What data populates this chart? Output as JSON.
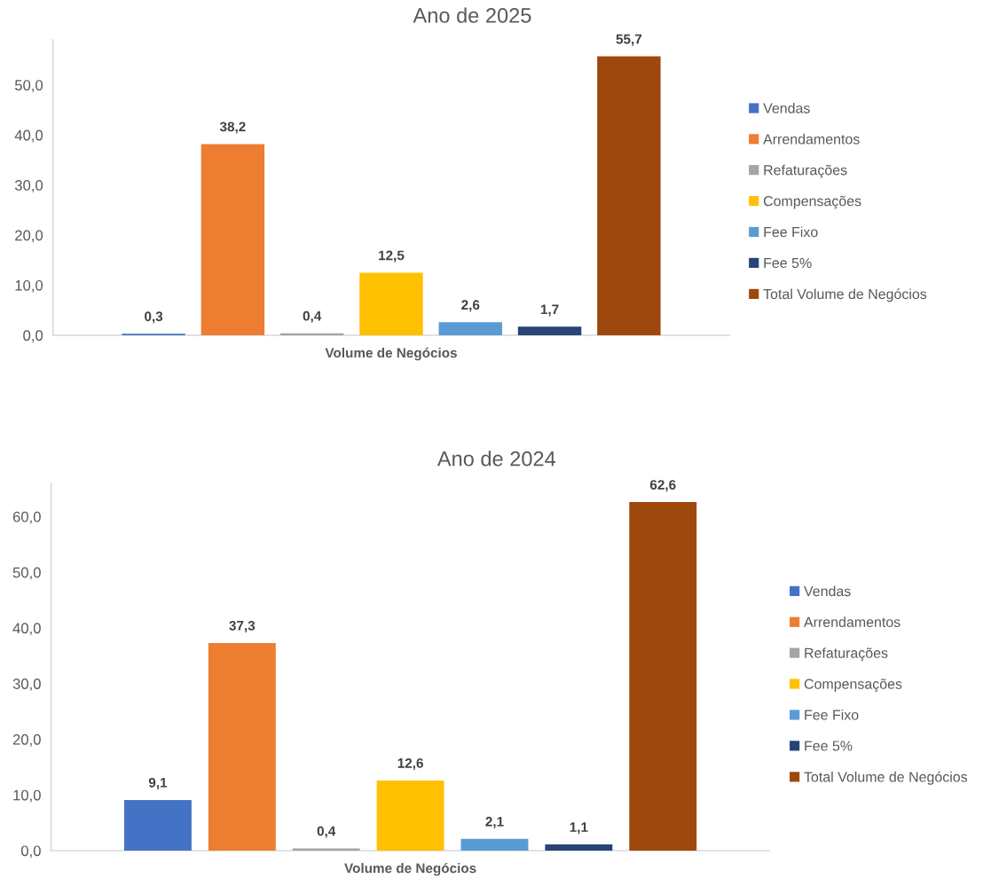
{
  "chart_data": [
    {
      "type": "bar",
      "title": "Ano de 2025",
      "categories": [
        "Volume de Negócios"
      ],
      "series": [
        {
          "name": "Vendas",
          "color": "#4472c4",
          "values": [
            0.3
          ],
          "value_labels": [
            "0,3"
          ]
        },
        {
          "name": "Arrendamentos",
          "color": "#ed7d31",
          "values": [
            38.2
          ],
          "value_labels": [
            "38,2"
          ]
        },
        {
          "name": "Refaturações",
          "color": "#a5a5a5",
          "values": [
            0.4
          ],
          "value_labels": [
            "0,4"
          ]
        },
        {
          "name": "Compensações",
          "color": "#ffc000",
          "values": [
            12.5
          ],
          "value_labels": [
            "12,5"
          ]
        },
        {
          "name": "Fee Fixo",
          "color": "#5b9bd5",
          "values": [
            2.6
          ],
          "value_labels": [
            "2,6"
          ]
        },
        {
          "name": "Fee 5%",
          "color": "#264478",
          "values": [
            1.7
          ],
          "value_labels": [
            "1,7"
          ]
        },
        {
          "name": "Total Volume de Negócios",
          "color": "#9e480e",
          "values": [
            55.7
          ],
          "value_labels": [
            "55,7"
          ]
        }
      ],
      "ylim": [
        0,
        59
      ],
      "yticks": [
        {
          "value": 0,
          "label": "0,0"
        },
        {
          "value": 10,
          "label": "10,0"
        },
        {
          "value": 20,
          "label": "20,0"
        },
        {
          "value": 30,
          "label": "30,0"
        },
        {
          "value": 40,
          "label": "40,0"
        },
        {
          "value": 50,
          "label": "50,0"
        }
      ],
      "legend": "right"
    },
    {
      "type": "bar",
      "title": "Ano de 2024",
      "categories": [
        "Volume de Negócios"
      ],
      "series": [
        {
          "name": "Vendas",
          "color": "#4472c4",
          "values": [
            9.1
          ],
          "value_labels": [
            "9,1"
          ]
        },
        {
          "name": "Arrendamentos",
          "color": "#ed7d31",
          "values": [
            37.3
          ],
          "value_labels": [
            "37,3"
          ]
        },
        {
          "name": "Refaturações",
          "color": "#a5a5a5",
          "values": [
            0.4
          ],
          "value_labels": [
            "0,4"
          ]
        },
        {
          "name": "Compensações",
          "color": "#ffc000",
          "values": [
            12.6
          ],
          "value_labels": [
            "12,6"
          ]
        },
        {
          "name": "Fee Fixo",
          "color": "#5b9bd5",
          "values": [
            2.1
          ],
          "value_labels": [
            "2,1"
          ]
        },
        {
          "name": "Fee 5%",
          "color": "#264478",
          "values": [
            1.1
          ],
          "value_labels": [
            "1,1"
          ]
        },
        {
          "name": "Total Volume de Negócios",
          "color": "#9e480e",
          "values": [
            62.6
          ],
          "value_labels": [
            "62,6"
          ]
        }
      ],
      "ylim": [
        0,
        66
      ],
      "yticks": [
        {
          "value": 0,
          "label": "0,0"
        },
        {
          "value": 10,
          "label": "10,0"
        },
        {
          "value": 20,
          "label": "20,0"
        },
        {
          "value": 30,
          "label": "30,0"
        },
        {
          "value": 40,
          "label": "40,0"
        },
        {
          "value": 50,
          "label": "50,0"
        },
        {
          "value": 60,
          "label": "60,0"
        }
      ],
      "legend": "right"
    }
  ]
}
